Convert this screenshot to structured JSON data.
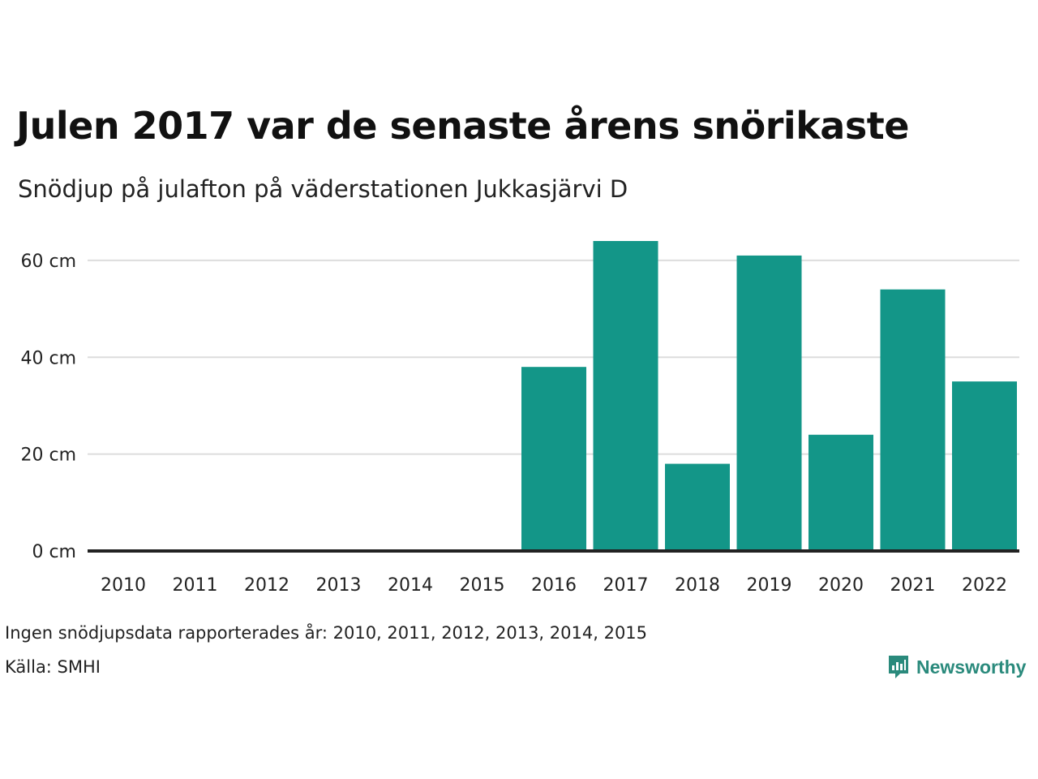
{
  "title": "Julen 2017 var de senaste årens snörikaste",
  "subtitle": "Snödjup på julafton på väderstationen Jukkasjärvi D",
  "note": "Ingen snödjupsdata rapporterades år: 2010, 2011, 2012, 2013, 2014, 2015",
  "source": "Källa: SMHI",
  "logo": {
    "text": "Newsworthy",
    "icon": "newsworthy-logo-icon"
  },
  "colors": {
    "bar": "#139688",
    "grid": "#dddddd",
    "baseline": "#222222",
    "logo": "#2a8a7c"
  },
  "chart_data": {
    "type": "bar",
    "categories": [
      "2010",
      "2011",
      "2012",
      "2013",
      "2014",
      "2015",
      "2016",
      "2017",
      "2018",
      "2019",
      "2020",
      "2021",
      "2022"
    ],
    "values": [
      null,
      null,
      null,
      null,
      null,
      null,
      38,
      64,
      18,
      61,
      24,
      54,
      35
    ],
    "ylim": [
      0,
      64
    ],
    "yticks": [
      0,
      20,
      40,
      60
    ],
    "ytick_labels": [
      "0 cm",
      "20 cm",
      "40 cm",
      "60 cm"
    ],
    "grid": true,
    "legend": "none"
  }
}
